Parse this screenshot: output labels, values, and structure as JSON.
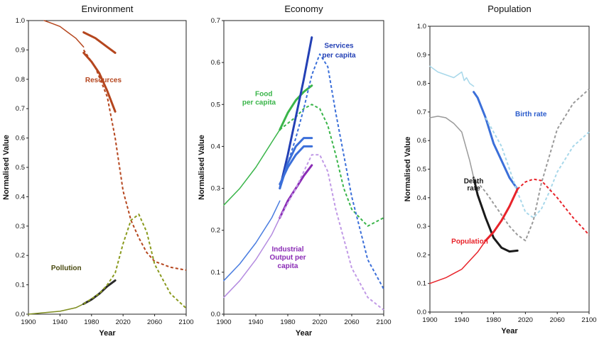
{
  "chart_data": [
    {
      "type": "line",
      "title": "Environment",
      "xlabel": "Year",
      "ylabel": "Normalised Value",
      "xlim": [
        1900,
        2100
      ],
      "ylim": [
        0,
        1.0
      ],
      "xticks": [
        "1900",
        "1940",
        "1980",
        "2020",
        "2060",
        "2100"
      ],
      "yticks": [
        "0.0",
        "0.1",
        "0.2",
        "0.3",
        "0.4",
        "0.5",
        "0.6",
        "0.7",
        "0.8",
        "0.9",
        "1.0"
      ],
      "grid": false,
      "series": [
        {
          "label": "Resources",
          "color": "#b5461e",
          "style": "solid",
          "width": 1.5,
          "x": [
            1920,
            1930,
            1940,
            1950,
            1960,
            1970
          ],
          "y": [
            1.0,
            0.99,
            0.98,
            0.96,
            0.94,
            0.91
          ]
        },
        {
          "label": "",
          "color": "#b5461e",
          "style": "solid",
          "width": 3,
          "x": [
            1970,
            1985,
            2000,
            2010
          ],
          "y": [
            0.96,
            0.94,
            0.91,
            0.89
          ]
        },
        {
          "label": "",
          "color": "#b5461e",
          "style": "solid",
          "width": 3,
          "x": [
            1970,
            1980,
            1990,
            2000,
            2010
          ],
          "y": [
            0.89,
            0.86,
            0.82,
            0.76,
            0.69
          ]
        },
        {
          "label": "",
          "color": "#b5461e",
          "style": "dashed",
          "width": 2,
          "x": [
            1970,
            1985,
            2000,
            2010,
            2020,
            2030,
            2040,
            2050,
            2060,
            2080,
            2100
          ],
          "y": [
            0.9,
            0.84,
            0.74,
            0.6,
            0.42,
            0.32,
            0.26,
            0.21,
            0.18,
            0.16,
            0.15
          ]
        },
        {
          "label": "Pollution",
          "color": "#7d8c1e",
          "style": "solid",
          "width": 1.5,
          "x": [
            1900,
            1920,
            1940,
            1960,
            1970
          ],
          "y": [
            0.0,
            0.005,
            0.01,
            0.022,
            0.035
          ]
        },
        {
          "label": "",
          "color": "#2a2a2a",
          "style": "solid",
          "width": 3,
          "x": [
            1970,
            1980,
            1990,
            2000,
            2010
          ],
          "y": [
            0.035,
            0.05,
            0.07,
            0.095,
            0.115
          ]
        },
        {
          "label": "",
          "color": "#8a9a1e",
          "style": "dashed",
          "width": 2,
          "x": [
            1970,
            1990,
            2000,
            2010,
            2020,
            2030,
            2040,
            2050,
            2060,
            2080,
            2100
          ],
          "y": [
            0.035,
            0.07,
            0.1,
            0.14,
            0.24,
            0.32,
            0.34,
            0.28,
            0.17,
            0.07,
            0.02
          ]
        }
      ],
      "annotations": [
        {
          "text": "Resources",
          "x": 1995,
          "y": 0.79,
          "color": "#b5461e"
        },
        {
          "text": "Pollution",
          "x": 1948,
          "y": 0.15,
          "color": "#4a4a10"
        }
      ]
    },
    {
      "type": "line",
      "title": "Economy",
      "xlabel": "Year",
      "ylabel": "Normalised Value",
      "xlim": [
        1900,
        2100
      ],
      "ylim": [
        0,
        0.7
      ],
      "xticks": [
        "1900",
        "1940",
        "1980",
        "2020",
        "2060",
        "2100"
      ],
      "yticks": [
        "0.0",
        "0.1",
        "0.2",
        "0.3",
        "0.4",
        "0.5",
        "0.6",
        "0.7"
      ],
      "grid": false,
      "series": [
        {
          "label": "Food per capita",
          "color": "#3ab54a",
          "style": "solid",
          "width": 1.5,
          "x": [
            1900,
            1920,
            1940,
            1960,
            1970
          ],
          "y": [
            0.26,
            0.3,
            0.35,
            0.41,
            0.44
          ]
        },
        {
          "label": "",
          "color": "#3ab54a",
          "style": "solid",
          "width": 3,
          "x": [
            1970,
            1980,
            1990,
            2000,
            2010
          ],
          "y": [
            0.44,
            0.48,
            0.51,
            0.53,
            0.545
          ]
        },
        {
          "label": "",
          "color": "#3ab54a",
          "style": "dashed",
          "width": 2,
          "x": [
            1970,
            1990,
            2000,
            2010,
            2020,
            2030,
            2040,
            2050,
            2060,
            2080,
            2100
          ],
          "y": [
            0.44,
            0.47,
            0.49,
            0.5,
            0.49,
            0.45,
            0.38,
            0.3,
            0.25,
            0.21,
            0.23
          ]
        },
        {
          "label": "Services per capita",
          "color": "#2340b5",
          "style": "solid",
          "width": 3,
          "x": [
            1970,
            1980,
            1990,
            2000,
            2010
          ],
          "y": [
            0.3,
            0.38,
            0.47,
            0.56,
            0.66
          ]
        },
        {
          "label": "",
          "color": "#3b6fd9",
          "style": "dashed",
          "width": 2,
          "x": [
            1970,
            1990,
            2000,
            2010,
            2020,
            2030,
            2040,
            2060,
            2080,
            2100
          ],
          "y": [
            0.3,
            0.42,
            0.49,
            0.57,
            0.62,
            0.59,
            0.48,
            0.28,
            0.13,
            0.06
          ]
        },
        {
          "label": "",
          "color": "#4a7de0",
          "style": "solid",
          "width": 1.5,
          "x": [
            1900,
            1920,
            1940,
            1960,
            1970
          ],
          "y": [
            0.08,
            0.12,
            0.17,
            0.23,
            0.27
          ]
        },
        {
          "label": "",
          "color": "#3b6fd9",
          "style": "solid",
          "width": 3,
          "x": [
            1970,
            1980,
            1990,
            2000,
            2010
          ],
          "y": [
            0.3,
            0.36,
            0.4,
            0.42,
            0.42
          ]
        },
        {
          "label": "",
          "color": "#3b6fd9",
          "style": "solid",
          "width": 3,
          "x": [
            1970,
            1980,
            1990,
            2000,
            2010
          ],
          "y": [
            0.31,
            0.35,
            0.38,
            0.4,
            0.4
          ]
        },
        {
          "label": "Industrial Output per capita",
          "color": "#b48be0",
          "style": "solid",
          "width": 1.5,
          "x": [
            1900,
            1920,
            1940,
            1960,
            1970
          ],
          "y": [
            0.04,
            0.08,
            0.13,
            0.19,
            0.23
          ]
        },
        {
          "label": "",
          "color": "#8a2bb5",
          "style": "solid",
          "width": 3,
          "x": [
            1970,
            1980,
            1990,
            2000,
            2010
          ],
          "y": [
            0.23,
            0.27,
            0.3,
            0.33,
            0.355
          ]
        },
        {
          "label": "",
          "color": "#c19ae6",
          "style": "dashed",
          "width": 2,
          "x": [
            1970,
            1990,
            2000,
            2010,
            2020,
            2030,
            2040,
            2060,
            2080,
            2100
          ],
          "y": [
            0.23,
            0.3,
            0.34,
            0.38,
            0.38,
            0.34,
            0.25,
            0.11,
            0.04,
            0.01
          ]
        }
      ],
      "annotations": [
        {
          "text": "Food",
          "x": 1950,
          "y": 0.52,
          "color": "#3ab54a"
        },
        {
          "text": "per capita",
          "x": 1944,
          "y": 0.5,
          "color": "#3ab54a"
        },
        {
          "text": "Services",
          "x": 2044,
          "y": 0.635,
          "color": "#2340b5"
        },
        {
          "text": "per capita",
          "x": 2044,
          "y": 0.612,
          "color": "#2340b5"
        },
        {
          "text": "Industrial",
          "x": 1980,
          "y": 0.15,
          "color": "#8a2bb5"
        },
        {
          "text": "Output per",
          "x": 1980,
          "y": 0.13,
          "color": "#8a2bb5"
        },
        {
          "text": "capita",
          "x": 1980,
          "y": 0.11,
          "color": "#8a2bb5"
        }
      ]
    },
    {
      "type": "line",
      "title": "Population",
      "xlabel": "Year",
      "ylabel": "Normalised Value",
      "xlim": [
        1900,
        2100
      ],
      "ylim": [
        0,
        1.0
      ],
      "xticks": [
        "1900",
        "1940",
        "1980",
        "2020",
        "2060",
        "2100"
      ],
      "yticks": [
        "0.0",
        "0.1",
        "0.2",
        "0.3",
        "0.4",
        "0.5",
        "0.6",
        "0.7",
        "0.8",
        "0.9",
        "1.0"
      ],
      "grid": false,
      "series": [
        {
          "label": "Birth rate",
          "color": "#a8d8ea",
          "style": "solid",
          "width": 1.5,
          "x": [
            1900,
            1910,
            1920,
            1930,
            1935,
            1940,
            1943,
            1946,
            1950,
            1955
          ],
          "y": [
            0.86,
            0.84,
            0.83,
            0.82,
            0.83,
            0.84,
            0.81,
            0.82,
            0.8,
            0.79
          ]
        },
        {
          "label": "",
          "color": "#3b6fd9",
          "style": "solid",
          "width": 3,
          "x": [
            1955,
            1960,
            1970,
            1980,
            1990,
            2000,
            2010
          ],
          "y": [
            0.77,
            0.75,
            0.68,
            0.59,
            0.53,
            0.47,
            0.43
          ]
        },
        {
          "label": "",
          "color": "#a8d8ea",
          "style": "dashed",
          "width": 2,
          "x": [
            1970,
            1990,
            2000,
            2010,
            2020,
            2030,
            2040,
            2050,
            2060,
            2080,
            2100
          ],
          "y": [
            0.68,
            0.58,
            0.5,
            0.42,
            0.35,
            0.33,
            0.36,
            0.42,
            0.49,
            0.58,
            0.63
          ]
        },
        {
          "label": "Death rate",
          "color": "#9a9a9a",
          "style": "solid",
          "width": 1.5,
          "x": [
            1900,
            1910,
            1920,
            1930,
            1940,
            1950,
            1955
          ],
          "y": [
            0.68,
            0.685,
            0.68,
            0.66,
            0.63,
            0.53,
            0.47
          ]
        },
        {
          "label": "",
          "color": "#1a1a1a",
          "style": "solid",
          "width": 3,
          "x": [
            1955,
            1960,
            1970,
            1980,
            1990,
            2000,
            2010
          ],
          "y": [
            0.47,
            0.41,
            0.33,
            0.26,
            0.225,
            0.212,
            0.215
          ]
        },
        {
          "label": "",
          "color": "#9a9a9a",
          "style": "dashed",
          "width": 2,
          "x": [
            1955,
            1970,
            1980,
            1990,
            2000,
            2010,
            2020,
            2030,
            2040,
            2060,
            2080,
            2100
          ],
          "y": [
            0.47,
            0.42,
            0.38,
            0.34,
            0.3,
            0.27,
            0.25,
            0.32,
            0.45,
            0.64,
            0.73,
            0.78
          ]
        },
        {
          "label": "Population",
          "color": "#e8232a",
          "style": "solid",
          "width": 1.5,
          "x": [
            1900,
            1920,
            1940,
            1960,
            1970
          ],
          "y": [
            0.1,
            0.12,
            0.15,
            0.21,
            0.25
          ]
        },
        {
          "label": "",
          "color": "#e8232a",
          "style": "solid",
          "width": 3,
          "x": [
            1970,
            1980,
            1990,
            2000,
            2010
          ],
          "y": [
            0.25,
            0.28,
            0.32,
            0.37,
            0.43
          ]
        },
        {
          "label": "",
          "color": "#e8232a",
          "style": "dashed",
          "width": 2,
          "x": [
            2010,
            2020,
            2030,
            2040,
            2050,
            2060,
            2080,
            2100
          ],
          "y": [
            0.43,
            0.455,
            0.465,
            0.46,
            0.43,
            0.4,
            0.33,
            0.27
          ]
        }
      ],
      "annotations": [
        {
          "text": "Birth rate",
          "x": 2027,
          "y": 0.685,
          "color": "#2b5ccc"
        },
        {
          "text": "Death",
          "x": 1955,
          "y": 0.45,
          "color": "#1a1a1a"
        },
        {
          "text": "rate",
          "x": 1955,
          "y": 0.425,
          "color": "#1a1a1a"
        },
        {
          "text": "Population",
          "x": 1950,
          "y": 0.24,
          "color": "#e8232a"
        }
      ]
    }
  ]
}
